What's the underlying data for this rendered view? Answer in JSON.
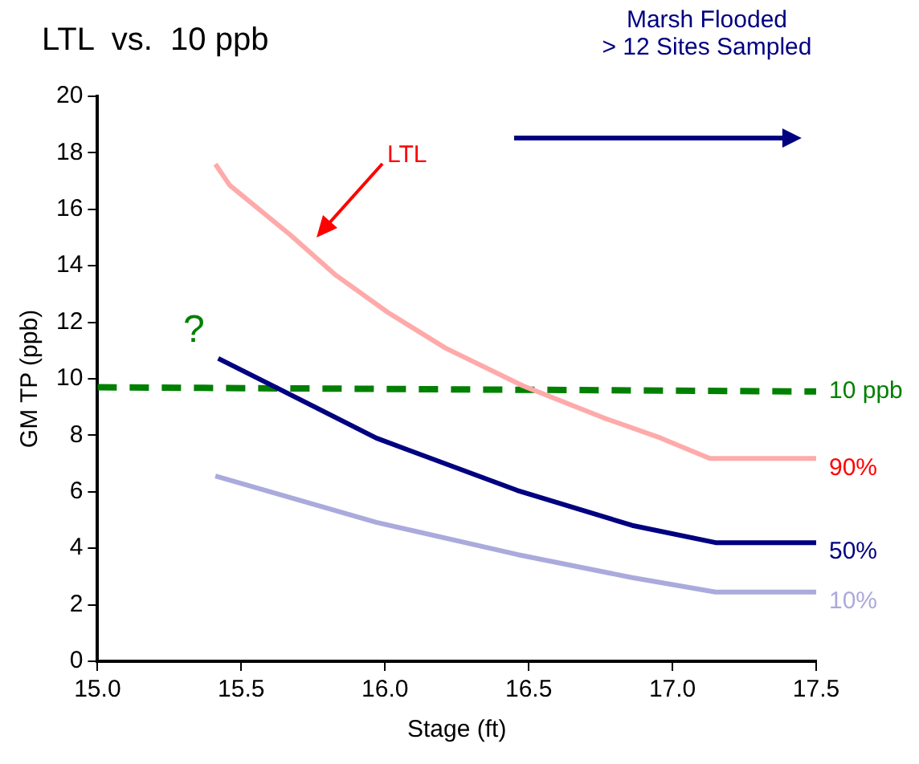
{
  "chart_data": {
    "type": "line",
    "title": "LTL  vs.  10 ppb",
    "xlabel": "Stage (ft)",
    "ylabel": "GM TP (ppb)",
    "xlim": [
      15,
      17.5
    ],
    "xticks": [
      {
        "value": 15,
        "label": "15.0"
      },
      {
        "value": 15.5,
        "label": "15.5"
      },
      {
        "value": 16,
        "label": "16.0"
      },
      {
        "value": 16.5,
        "label": "16.5"
      },
      {
        "value": 17,
        "label": "17.0"
      },
      {
        "value": 17.5,
        "label": "17.5"
      }
    ],
    "ylim": [
      0,
      20
    ],
    "yticks": [
      0,
      2,
      4,
      6,
      8,
      10,
      12,
      14,
      16,
      18,
      20
    ],
    "grid": false,
    "legend": false,
    "marker": "none",
    "series": [
      {
        "name": "90%",
        "color": "#ffaaaa",
        "x": [
          15.41,
          15.46,
          15.67,
          15.83,
          16.01,
          16.21,
          16.48,
          16.76,
          16.96,
          17.13,
          17.5
        ],
        "values": [
          17.6,
          16.85,
          15.1,
          13.66,
          12.35,
          11.09,
          9.75,
          8.62,
          7.9,
          7.18,
          7.18
        ]
      },
      {
        "name": "50%",
        "color": "#000080",
        "x": [
          15.42,
          15.63,
          15.97,
          16.46,
          16.86,
          17.15,
          17.5
        ],
        "values": [
          10.72,
          9.65,
          7.9,
          6.05,
          4.81,
          4.2,
          4.2
        ]
      },
      {
        "name": "10%",
        "color": "#aaaadd",
        "x": [
          15.41,
          15.97,
          16.46,
          16.86,
          17.15,
          17.5
        ],
        "values": [
          6.56,
          4.92,
          3.78,
          2.96,
          2.45,
          2.45
        ]
      },
      {
        "name": "10 ppb",
        "color": "#008000",
        "line_style": "dashed",
        "x": [
          15,
          17.5
        ],
        "values": [
          9.7,
          9.55
        ]
      }
    ],
    "annotations": [
      "LTL",
      "?",
      "Marsh Flooded\n> 12 Sites Sampled"
    ]
  }
}
